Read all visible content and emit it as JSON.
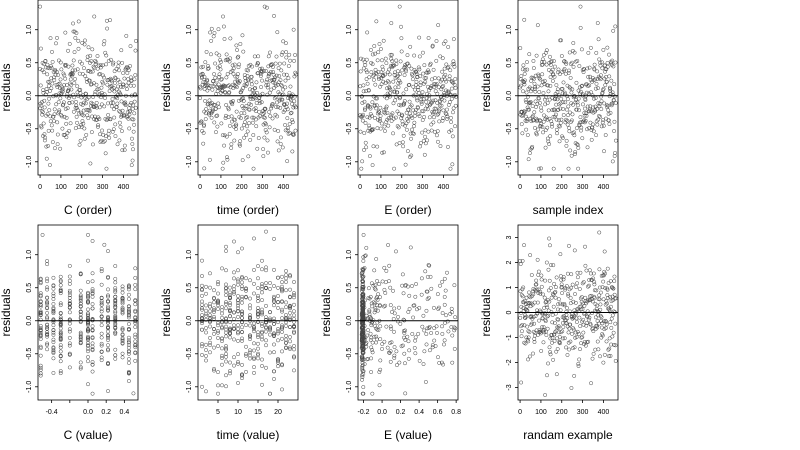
{
  "figure": {
    "ylabel": "residuals",
    "background": "#ffffff",
    "point_color": "#444444",
    "line_color": "#000000"
  },
  "chart_data": [
    {
      "type": "scatter",
      "xlabel": "C (order)",
      "ylabel": "residuals",
      "xlim": [
        -10,
        470
      ],
      "ylim": [
        -1.2,
        1.45
      ],
      "xticks": [
        0,
        100,
        200,
        300,
        400
      ],
      "xtick_labels": [
        "0",
        "100",
        "200",
        "300",
        "400"
      ],
      "yticks": [
        -1.0,
        -0.5,
        0.0,
        0.5,
        1.0
      ],
      "ytick_labels": [
        "-1.0",
        "-0.5",
        "0.0",
        "0.5",
        "1.0"
      ],
      "reference_line": 0,
      "n": 460,
      "dist": "uniform",
      "x_range": [
        0,
        460
      ],
      "y_sd": 0.42,
      "highlighted_points": [
        [
          0,
          1.35
        ],
        [
          260,
          1.2
        ],
        [
          440,
          -1.05
        ]
      ]
    },
    {
      "type": "scatter",
      "xlabel": "time (order)",
      "ylabel": "residuals",
      "xlim": [
        -10,
        470
      ],
      "ylim": [
        -1.2,
        1.45
      ],
      "xticks": [
        0,
        100,
        200,
        300,
        400
      ],
      "xtick_labels": [
        "0",
        "100",
        "200",
        "300",
        "400"
      ],
      "yticks": [
        -1.0,
        -0.5,
        0.0,
        0.5,
        1.0
      ],
      "ytick_labels": [
        "-1.0",
        "-0.5",
        "0.0",
        "0.5",
        "1.0"
      ],
      "reference_line": 0,
      "n": 460,
      "dist": "uniform",
      "x_range": [
        0,
        460
      ],
      "y_sd": 0.42,
      "highlighted_points": [
        [
          310,
          1.35
        ],
        [
          110,
          1.2
        ],
        [
          20,
          -1.1
        ]
      ]
    },
    {
      "type": "scatter",
      "xlabel": "E (order)",
      "ylabel": "residuals",
      "xlim": [
        -10,
        470
      ],
      "ylim": [
        -1.2,
        1.45
      ],
      "xticks": [
        0,
        100,
        200,
        300,
        400
      ],
      "xtick_labels": [
        "0",
        "100",
        "200",
        "300",
        "400"
      ],
      "yticks": [
        -1.0,
        -0.5,
        0.0,
        0.5,
        1.0
      ],
      "ytick_labels": [
        "-1.0",
        "-0.5",
        "0.0",
        "0.5",
        "1.0"
      ],
      "reference_line": 0,
      "n": 460,
      "dist": "uniform",
      "x_range": [
        0,
        460
      ],
      "y_sd": 0.42,
      "highlighted_points": [
        [
          190,
          1.35
        ],
        [
          60,
          -1.05
        ],
        [
          150,
          1.1
        ]
      ]
    },
    {
      "type": "scatter",
      "xlabel": "sample index",
      "ylabel": "residuals",
      "xlim": [
        -10,
        470
      ],
      "ylim": [
        -1.2,
        1.45
      ],
      "xticks": [
        0,
        100,
        200,
        300,
        400
      ],
      "xtick_labels": [
        "0",
        "100",
        "200",
        "300",
        "400"
      ],
      "yticks": [
        -1.0,
        -0.5,
        0.0,
        0.5,
        1.0
      ],
      "ytick_labels": [
        "-1.0",
        "-0.5",
        "0.0",
        "0.5",
        "1.0"
      ],
      "reference_line": 0,
      "n": 460,
      "dist": "uniform",
      "x_range": [
        0,
        460
      ],
      "y_sd": 0.42,
      "highlighted_points": [
        [
          290,
          1.35
        ],
        [
          100,
          -1.1
        ],
        [
          20,
          1.15
        ]
      ]
    },
    {
      "type": "scatter",
      "xlabel": "C (value)",
      "ylabel": "residuals",
      "xlim": [
        -0.55,
        0.55
      ],
      "ylim": [
        -1.2,
        1.45
      ],
      "xticks": [
        -0.4,
        -0.2,
        0.0,
        0.2,
        0.4
      ],
      "xtick_labels": [
        "-0.4",
        "",
        "0.0",
        "0.2",
        "0.4"
      ],
      "yticks": [
        -1.0,
        -0.5,
        0.0,
        0.5,
        1.0
      ],
      "ytick_labels": [
        "-1.0",
        "-0.5",
        "0.0",
        "0.5",
        "1.0"
      ],
      "reference_line": 0,
      "n": 460,
      "dist": "discrete",
      "x_levels": [
        -0.52,
        -0.45,
        -0.38,
        -0.3,
        -0.2,
        -0.08,
        0.0,
        0.05,
        0.15,
        0.22,
        0.3,
        0.38,
        0.45,
        0.52
      ],
      "y_sd": 0.42,
      "highlighted_points": [
        [
          -0.5,
          1.3
        ],
        [
          0.18,
          1.15
        ],
        [
          0.5,
          -1.1
        ]
      ]
    },
    {
      "type": "scatter",
      "xlabel": "time (value)",
      "ylabel": "residuals",
      "xlim": [
        0,
        25
      ],
      "ylim": [
        -1.2,
        1.45
      ],
      "xticks": [
        5,
        10,
        15,
        20
      ],
      "xtick_labels": [
        "5",
        "10",
        "15",
        "20"
      ],
      "yticks": [
        -1.0,
        -0.5,
        0.0,
        0.5,
        1.0
      ],
      "ytick_labels": [
        "-1.0",
        "-0.5",
        "0.0",
        "0.5",
        "1.0"
      ],
      "reference_line": 0,
      "n": 460,
      "dist": "discrete",
      "x_levels": [
        1,
        2,
        3,
        4,
        5,
        6,
        7,
        8,
        9,
        10,
        11,
        12,
        13,
        14,
        15,
        16,
        17,
        18,
        19,
        20,
        21,
        22,
        23,
        24
      ],
      "y_sd": 0.42,
      "highlighted_points": [
        [
          17,
          1.35
        ],
        [
          9,
          1.2
        ],
        [
          1,
          -1.0
        ]
      ]
    },
    {
      "type": "scatter",
      "xlabel": "E (value)",
      "ylabel": "residuals",
      "xlim": [
        -0.26,
        0.82
      ],
      "ylim": [
        -1.2,
        1.45
      ],
      "xticks": [
        -0.2,
        0.0,
        0.2,
        0.4,
        0.6,
        0.8
      ],
      "xtick_labels": [
        "-0.2",
        "0.0",
        "0.2",
        "0.4",
        "0.6",
        "0.8"
      ],
      "yticks": [
        -1.0,
        -0.5,
        0.0,
        0.5,
        1.0
      ],
      "ytick_labels": [
        "-1.0",
        "-0.5",
        "0.0",
        "0.5",
        "1.0"
      ],
      "reference_line": 0,
      "n": 460,
      "dist": "skewed",
      "x_cluster": -0.21,
      "x_max": 0.8,
      "y_sd": 0.42,
      "highlighted_points": [
        [
          -0.2,
          1.3
        ],
        [
          0.15,
          1.05
        ],
        [
          0.25,
          -1.1
        ]
      ]
    },
    {
      "type": "scatter",
      "xlabel": "randam example",
      "ylabel": "residuals",
      "xlim": [
        -10,
        470
      ],
      "ylim": [
        -3.5,
        3.5
      ],
      "xticks": [
        0,
        100,
        200,
        300,
        400
      ],
      "xtick_labels": [
        "0",
        "100",
        "200",
        "300",
        "400"
      ],
      "yticks": [
        -3,
        -2,
        -1,
        0,
        1,
        2,
        3
      ],
      "ytick_labels": [
        "-3",
        "-2",
        "-1",
        "0",
        "1",
        "2",
        "3"
      ],
      "reference_line": 0,
      "n": 460,
      "dist": "uniform",
      "x_range": [
        0,
        460
      ],
      "y_sd": 1.0,
      "highlighted_points": [
        [
          5,
          -2.8
        ],
        [
          120,
          -3.3
        ],
        [
          380,
          3.2
        ]
      ]
    }
  ]
}
